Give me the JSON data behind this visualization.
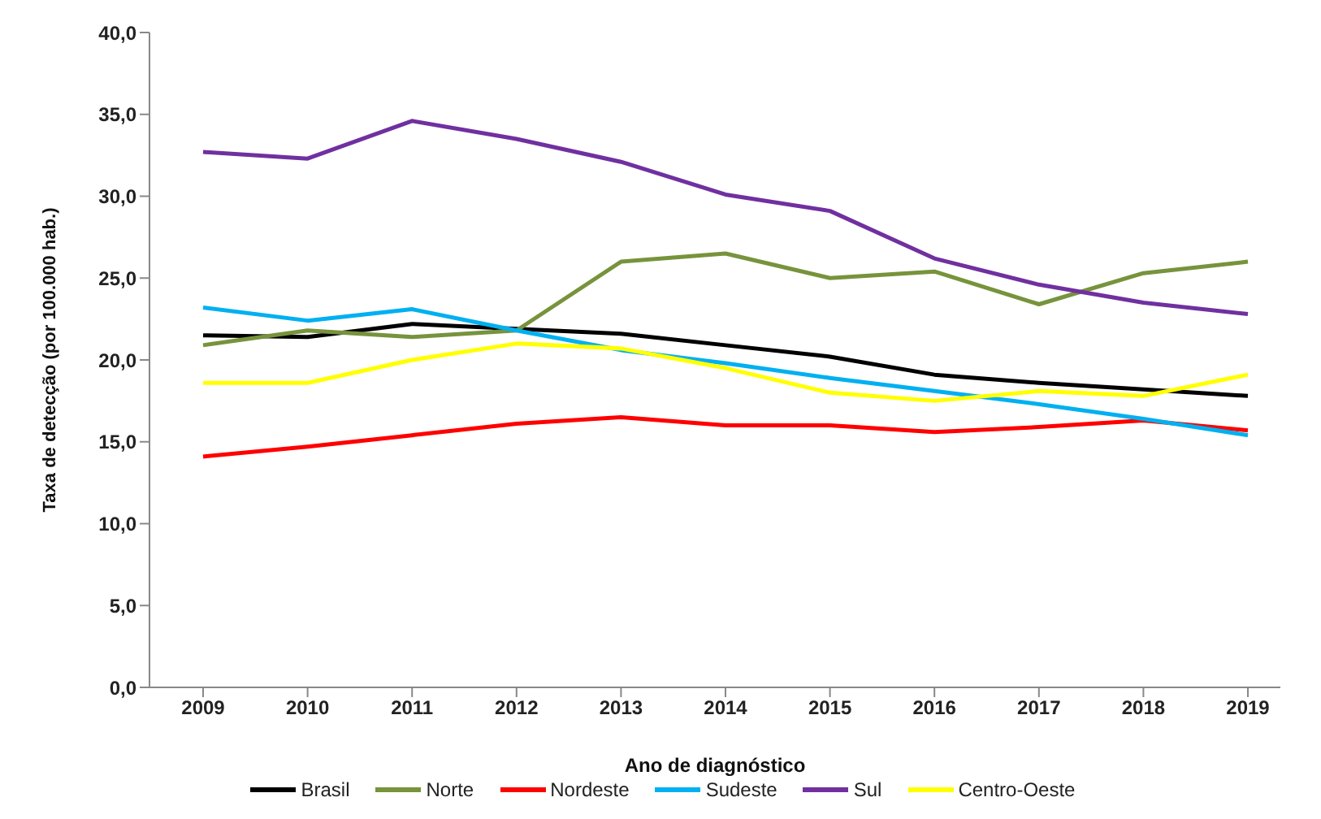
{
  "chart_data": {
    "type": "line",
    "xlabel": "Ano de diagnóstico",
    "ylabel": "Taxa de detecção (por 100.000 hab.)",
    "categories": [
      "2009",
      "2010",
      "2011",
      "2012",
      "2013",
      "2014",
      "2015",
      "2016",
      "2017",
      "2018",
      "2019"
    ],
    "series": [
      {
        "name": "Brasil",
        "color": "#000000",
        "values": [
          21.5,
          21.4,
          22.2,
          21.9,
          21.6,
          20.9,
          20.2,
          19.1,
          18.6,
          18.2,
          17.8
        ]
      },
      {
        "name": "Norte",
        "color": "#77933c",
        "values": [
          20.9,
          21.8,
          21.4,
          21.8,
          26.0,
          26.5,
          25.0,
          25.4,
          23.4,
          25.3,
          26.0
        ]
      },
      {
        "name": "Nordeste",
        "color": "#ff0000",
        "values": [
          14.1,
          14.7,
          15.4,
          16.1,
          16.5,
          16.0,
          16.0,
          15.6,
          15.9,
          16.3,
          15.7
        ]
      },
      {
        "name": "Sudeste",
        "color": "#00b0f0",
        "values": [
          23.2,
          22.4,
          23.1,
          21.8,
          20.6,
          19.8,
          18.9,
          18.1,
          17.3,
          16.4,
          15.4
        ]
      },
      {
        "name": "Sul",
        "color": "#7030a0",
        "values": [
          32.7,
          32.3,
          34.6,
          33.5,
          32.1,
          30.1,
          29.1,
          26.2,
          24.6,
          23.5,
          22.8
        ]
      },
      {
        "name": "Centro-Oeste",
        "color": "#ffff00",
        "values": [
          18.6,
          18.6,
          20.0,
          21.0,
          20.7,
          19.5,
          18.0,
          17.5,
          18.1,
          17.8,
          19.1
        ]
      }
    ],
    "ylim": [
      0,
      40
    ],
    "yticks": [
      {
        "value": 0,
        "label": "0,0"
      },
      {
        "value": 5,
        "label": "5,0"
      },
      {
        "value": 10,
        "label": "10,0"
      },
      {
        "value": 15,
        "label": "15,0"
      },
      {
        "value": 20,
        "label": "20,0"
      },
      {
        "value": 25,
        "label": "25,0"
      },
      {
        "value": 30,
        "label": "30,0"
      },
      {
        "value": 35,
        "label": "35,0"
      },
      {
        "value": 40,
        "label": "40,0"
      }
    ],
    "grid": false,
    "legend": "bottom",
    "marker": "none",
    "line_style": "solid"
  }
}
